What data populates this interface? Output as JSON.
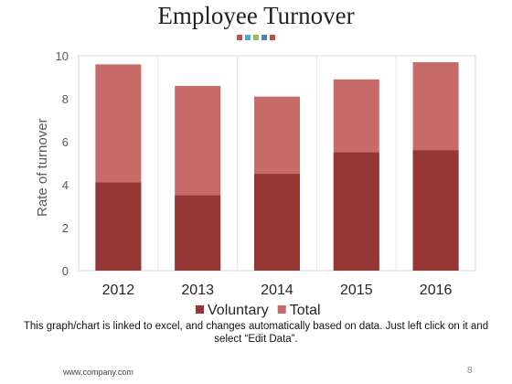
{
  "slide": {
    "title": "Employee Turnover",
    "note": "This graph/chart is linked to excel, and changes automatically based on data. Just left click on it and select “Edit Data”.",
    "footer_url": "www.company.com",
    "page_number": "8",
    "dot_colors": [
      "#c0504d",
      "#4bacc6",
      "#9bbb59",
      "#4f81bd",
      "#c0504d"
    ]
  },
  "chart_data": {
    "type": "bar",
    "stacked": false,
    "overlap": true,
    "title": "",
    "xlabel": "",
    "ylabel": "Rate of  turnover",
    "ylim": [
      0,
      10
    ],
    "yticks": [
      0,
      2,
      4,
      6,
      8,
      10
    ],
    "grid": true,
    "legend": "bottom",
    "categories": [
      "2012",
      "2013",
      "2014",
      "2015",
      "2016"
    ],
    "series": [
      {
        "name": "Voluntary",
        "color": "#943634",
        "values": [
          4.1,
          3.5,
          4.5,
          5.5,
          5.6
        ]
      },
      {
        "name": "Total",
        "color": "#c66b68",
        "values": [
          9.6,
          8.6,
          8.1,
          8.9,
          9.7
        ]
      }
    ]
  }
}
